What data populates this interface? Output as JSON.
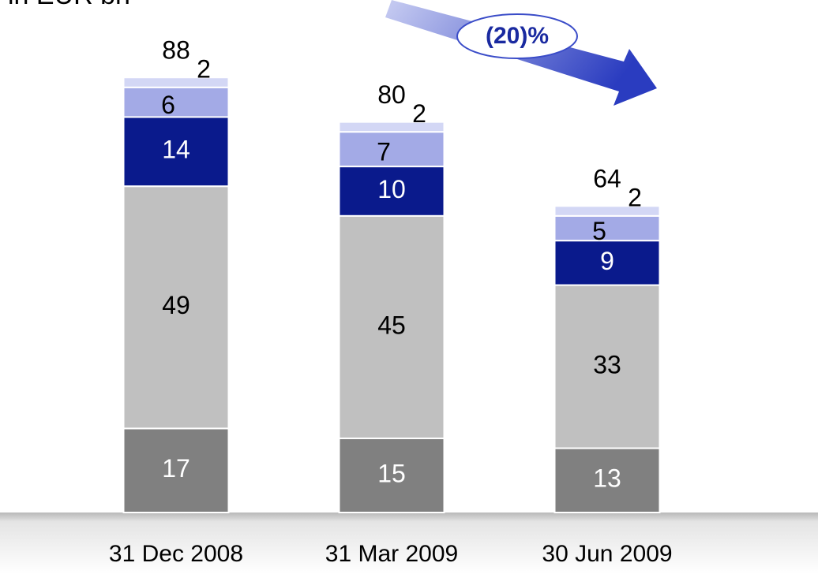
{
  "chart_data": {
    "type": "stacked-bar",
    "title": "in EUR bn",
    "annotation": "(20)%",
    "categories": [
      "31 Dec 2008",
      "31 Mar 2009",
      "30 Jun 2009"
    ],
    "series": [
      {
        "color": "#808080",
        "values": [
          17,
          15,
          13
        ]
      },
      {
        "color": "#c0c0c0",
        "values": [
          49,
          45,
          33
        ]
      },
      {
        "color": "#0a1a8c",
        "values": [
          14,
          10,
          9
        ]
      },
      {
        "color": "#a3aae6",
        "values": [
          6,
          7,
          5
        ]
      },
      {
        "color": "#d3d7f5",
        "values": [
          2,
          2,
          2
        ]
      }
    ],
    "totals": [
      88,
      80,
      64
    ]
  }
}
